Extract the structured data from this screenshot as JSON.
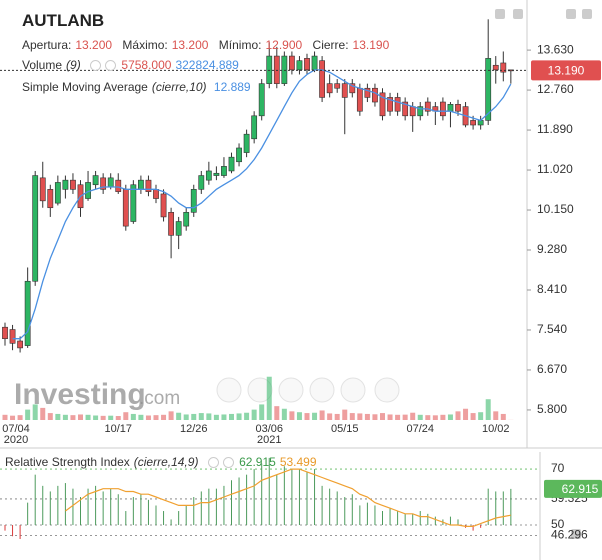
{
  "chart_data": [
    {
      "type": "candlestick",
      "title": "AUTLANB",
      "ohlc_legend": [
        {
          "label": "Apertura:",
          "value": "13.200"
        },
        {
          "label": "Máximo:",
          "value": "13.200"
        },
        {
          "label": "Mínimo:",
          "value": "12.900"
        },
        {
          "label": "Cierre:",
          "value": "13.190"
        }
      ],
      "categories": [
        "07/04",
        null,
        null,
        null,
        null,
        null,
        null,
        null,
        null,
        null,
        null,
        null,
        null,
        null,
        null,
        "10/17",
        null,
        null,
        null,
        null,
        null,
        null,
        null,
        null,
        null,
        "12/26",
        null,
        null,
        null,
        null,
        null,
        null,
        null,
        null,
        null,
        "03/06",
        null,
        null,
        null,
        null,
        null,
        null,
        null,
        null,
        null,
        "05/15",
        null,
        null,
        null,
        null,
        null,
        null,
        null,
        null,
        null,
        "07/24",
        null,
        null,
        null,
        null,
        null,
        null,
        null,
        null,
        null,
        "10/02",
        null,
        null
      ],
      "category_years": [
        "2020",
        null,
        null,
        null,
        null,
        null,
        null,
        null,
        null,
        null,
        null,
        null,
        null,
        null,
        null,
        null,
        null,
        null,
        null,
        null,
        null,
        null,
        null,
        null,
        null,
        null,
        null,
        null,
        null,
        null,
        null,
        null,
        null,
        null,
        null,
        "2021",
        null,
        null,
        null,
        null,
        null,
        null,
        null,
        null,
        null,
        null,
        null,
        null,
        null,
        null,
        null,
        null,
        null,
        null,
        null,
        null,
        null,
        null,
        null,
        null,
        null,
        null,
        null,
        null,
        null,
        null,
        null,
        null
      ],
      "open": [
        7.6,
        7.55,
        7.3,
        7.2,
        8.6,
        10.85,
        10.6,
        10.3,
        10.6,
        10.8,
        10.7,
        10.4,
        10.7,
        10.85,
        10.65,
        10.8,
        10.6,
        9.9,
        10.6,
        10.8,
        10.6,
        10.5,
        10.1,
        9.6,
        9.8,
        10.1,
        10.6,
        10.8,
        10.9,
        10.9,
        11.0,
        11.2,
        11.4,
        11.7,
        12.2,
        12.9,
        13.5,
        12.9,
        13.5,
        13.2,
        13.45,
        13.2,
        13.4,
        12.9,
        12.9,
        12.9,
        12.9,
        12.8,
        12.8,
        12.8,
        12.7,
        12.6,
        12.6,
        12.5,
        12.4,
        12.2,
        12.5,
        12.4,
        12.5,
        12.3,
        12.45,
        12.4,
        12.1,
        12.0,
        12.1,
        13.3,
        13.35,
        13.2
      ],
      "high": [
        7.7,
        7.65,
        7.4,
        8.9,
        11.0,
        11.2,
        10.7,
        10.9,
        10.9,
        10.95,
        10.8,
        11.0,
        11.0,
        10.95,
        10.95,
        10.95,
        10.7,
        10.8,
        10.9,
        10.9,
        10.7,
        10.6,
        10.2,
        10.0,
        10.2,
        10.7,
        11.0,
        11.2,
        11.1,
        11.3,
        11.4,
        11.6,
        11.9,
        12.3,
        13.0,
        13.8,
        13.7,
        13.6,
        13.6,
        13.5,
        13.55,
        13.6,
        13.5,
        13.1,
        13.0,
        13.0,
        13.0,
        12.9,
        12.9,
        12.9,
        12.8,
        12.7,
        12.7,
        12.6,
        12.5,
        12.5,
        12.6,
        12.5,
        12.6,
        12.5,
        12.55,
        12.5,
        12.2,
        12.2,
        14.3,
        13.5,
        13.6,
        13.2
      ],
      "low": [
        7.2,
        7.1,
        7.05,
        7.15,
        8.5,
        10.2,
        10.0,
        10.25,
        10.4,
        10.5,
        10.0,
        10.35,
        10.6,
        10.5,
        10.6,
        10.5,
        9.7,
        9.85,
        10.5,
        10.45,
        10.3,
        9.9,
        9.1,
        9.3,
        9.7,
        10.0,
        10.5,
        10.7,
        10.8,
        10.85,
        10.95,
        11.1,
        11.3,
        11.6,
        12.1,
        12.8,
        12.8,
        12.85,
        13.1,
        13.1,
        13.1,
        13.15,
        12.5,
        12.6,
        12.7,
        11.8,
        12.6,
        12.2,
        12.5,
        12.4,
        12.1,
        12.2,
        12.2,
        12.1,
        11.85,
        12.1,
        12.2,
        12.0,
        12.1,
        11.95,
        12.2,
        11.95,
        11.9,
        11.9,
        12.0,
        12.9,
        12.95,
        12.9
      ],
      "close": [
        7.35,
        7.25,
        7.15,
        8.6,
        10.9,
        10.35,
        10.2,
        10.75,
        10.8,
        10.6,
        10.2,
        10.75,
        10.9,
        10.6,
        10.85,
        10.55,
        9.8,
        10.7,
        10.8,
        10.55,
        10.4,
        10.0,
        9.6,
        9.9,
        10.1,
        10.6,
        10.9,
        11.0,
        10.95,
        11.1,
        11.3,
        11.5,
        11.8,
        12.2,
        12.9,
        13.5,
        12.9,
        13.5,
        13.2,
        13.4,
        13.2,
        13.5,
        12.6,
        12.7,
        12.8,
        12.6,
        12.7,
        12.3,
        12.6,
        12.5,
        12.2,
        12.3,
        12.3,
        12.2,
        12.2,
        12.4,
        12.3,
        12.3,
        12.2,
        12.45,
        12.3,
        12.0,
        12.0,
        12.1,
        13.45,
        13.2,
        13.15,
        13.19
      ],
      "up_color": "#2db563",
      "down_color": "#e05050",
      "sma": {
        "name": "Simple Moving Average",
        "params": "(cierre,10)",
        "value_label": "12.889",
        "color": "#4a90e2",
        "values": [
          null,
          7.35,
          7.35,
          7.5,
          8.0,
          8.6,
          9.1,
          9.5,
          9.9,
          10.2,
          10.45,
          10.55,
          10.6,
          10.65,
          10.65,
          10.65,
          10.6,
          10.6,
          10.6,
          10.6,
          10.6,
          10.55,
          10.45,
          10.3,
          10.2,
          10.2,
          10.3,
          10.45,
          10.6,
          10.7,
          10.8,
          10.9,
          11.05,
          11.25,
          11.5,
          11.8,
          12.1,
          12.4,
          12.7,
          12.95,
          13.1,
          13.2,
          13.2,
          13.15,
          13.05,
          12.95,
          12.85,
          12.8,
          12.75,
          12.7,
          12.6,
          12.55,
          12.5,
          12.45,
          12.4,
          12.35,
          12.35,
          12.3,
          12.3,
          12.3,
          12.25,
          12.2,
          12.15,
          12.1,
          12.25,
          12.4,
          12.6,
          12.889
        ]
      },
      "volume": {
        "name": "Volume",
        "params": "(9)",
        "last_label": "5758.000",
        "ma_label": "322824.889",
        "lim": [
          0,
          2600000
        ],
        "values": [
          300000,
          250000,
          280000,
          600000,
          900000,
          700000,
          400000,
          350000,
          300000,
          280000,
          320000,
          300000,
          260000,
          240000,
          250000,
          230000,
          450000,
          350000,
          300000,
          260000,
          280000,
          300000,
          500000,
          420000,
          320000,
          350000,
          400000,
          380000,
          300000,
          320000,
          350000,
          380000,
          420000,
          600000,
          900000,
          2500000,
          800000,
          650000,
          500000,
          450000,
          400000,
          420000,
          550000,
          380000,
          350000,
          600000,
          400000,
          380000,
          350000,
          330000,
          400000,
          320000,
          300000,
          310000,
          420000,
          300000,
          280000,
          270000,
          300000,
          320000,
          500000,
          650000,
          400000,
          450000,
          1200000,
          500000,
          350000,
          5758
        ]
      },
      "current_price": {
        "value": 13.19,
        "label": "13.190",
        "color": "#e05050"
      },
      "ylim": [
        5.32,
        14.72
      ],
      "yticks": [
        {
          "value": 13.63,
          "label": "13.630"
        },
        {
          "value": 12.76,
          "label": "12.760"
        },
        {
          "value": 11.89,
          "label": "11.890"
        },
        {
          "value": 11.02,
          "label": "11.020"
        },
        {
          "value": 10.15,
          "label": "10.150"
        },
        {
          "value": 9.28,
          "label": "9.280"
        },
        {
          "value": 8.41,
          "label": "8.410"
        },
        {
          "value": 7.54,
          "label": "7.540"
        },
        {
          "value": 6.67,
          "label": "6.670"
        },
        {
          "value": 5.8,
          "label": "5.800"
        }
      ],
      "watermark": {
        "brand": "Investing",
        "suffix": ".com"
      }
    },
    {
      "type": "rsi",
      "title": "Relative Strength Index",
      "params": "(cierre,14,9)",
      "value_label": "62.915",
      "signal_label": "53.499",
      "values": [
        48,
        46,
        45,
        58,
        68,
        64,
        62,
        64,
        65,
        63,
        60,
        63,
        64,
        62,
        63,
        61,
        55,
        60,
        61,
        59,
        57,
        55,
        52,
        55,
        57,
        60,
        62,
        63,
        63,
        64,
        66,
        67,
        68,
        70,
        72,
        74,
        68,
        71,
        70,
        70,
        69,
        70,
        64,
        63,
        62,
        60,
        61,
        57,
        58,
        57,
        55,
        56,
        55,
        54,
        54,
        55,
        54,
        53,
        52,
        53,
        52,
        49,
        48,
        49,
        63,
        62,
        62,
        62.915
      ],
      "signal": [
        null,
        null,
        null,
        null,
        null,
        null,
        null,
        null,
        55,
        57,
        59,
        61,
        62,
        63,
        63,
        63,
        62,
        62,
        61,
        61,
        60,
        59,
        58,
        57,
        57,
        57,
        58,
        58,
        59,
        60,
        61,
        62,
        63,
        64,
        66,
        67,
        68,
        69,
        70,
        70,
        69,
        68,
        67,
        66,
        65,
        64,
        63,
        61,
        60,
        58,
        57,
        56,
        55,
        54,
        54,
        53,
        53,
        52,
        51,
        50,
        50,
        49.5,
        49.5,
        50.5,
        51.5,
        52.5,
        53,
        53.499
      ],
      "baseline": 50,
      "up_color": "#4c9a5c",
      "down_color": "#d93a3a",
      "signal_color": "#f0a030",
      "tag_color": "#5cb85c",
      "ylim": [
        37.5,
        76.1
      ],
      "yticks": [
        70,
        59.325,
        50,
        46.296
      ]
    }
  ]
}
